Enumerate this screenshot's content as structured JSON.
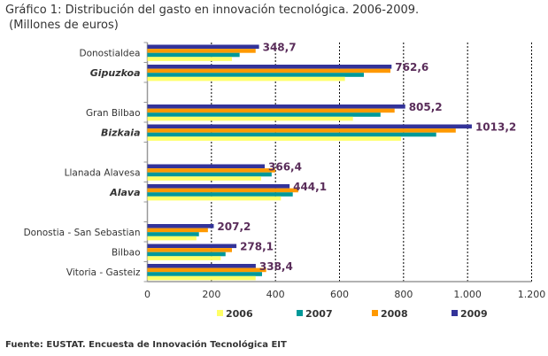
{
  "chart_data": {
    "type": "bar",
    "orientation": "horizontal",
    "title": "Gráfico 1: Distribución del gasto en innovación tecnológica. 2006-2009.",
    "subtitle": "(Millones de euros)",
    "source": "Fuente: EUSTAT. Encuesta de Innovación Tecnológica EIT",
    "categories": [
      "Donostialdea",
      "Gipuzkoa",
      "",
      "Gran Bilbao",
      "Bizkaia",
      "",
      "Llanada Alavesa",
      "Alava",
      "",
      "Donostia - San Sebastian",
      "Bilbao",
      "Vitoria - Gasteiz"
    ],
    "province_categories": [
      "Gipuzkoa",
      "Bizkaia",
      "Alava"
    ],
    "series": [
      {
        "name": "2006",
        "color": "#ffff66",
        "values": [
          264,
          617,
          null,
          642,
          792,
          null,
          355,
          417,
          null,
          153,
          229,
          338
        ]
      },
      {
        "name": "2007",
        "color": "#009999",
        "values": [
          288,
          676,
          null,
          728,
          902,
          null,
          388,
          454,
          null,
          161,
          244,
          358
        ]
      },
      {
        "name": "2008",
        "color": "#ff9900",
        "values": [
          338,
          759,
          null,
          772,
          963,
          null,
          399,
          471,
          null,
          189,
          264,
          371
        ]
      },
      {
        "name": "2009",
        "color": "#333399",
        "values": [
          348.7,
          762.6,
          null,
          805.2,
          1013.2,
          null,
          366.4,
          444.1,
          null,
          207.2,
          278.1,
          338.4
        ]
      }
    ],
    "data_labels": [
      "348,7",
      "762,6",
      "",
      "805,2",
      "1013,2",
      "",
      "366,4",
      "444,1",
      "",
      "207,2",
      "278,1",
      "338,4"
    ],
    "xlim": [
      0,
      1200
    ],
    "xticks": [
      0,
      200,
      400,
      600,
      800,
      1000,
      1200
    ],
    "xtick_labels": [
      "0",
      "200",
      "400",
      "600",
      "800",
      "1.000",
      "1.200"
    ],
    "grid": true,
    "legend_position": "bottom",
    "label_color": "#5a2d5a"
  }
}
